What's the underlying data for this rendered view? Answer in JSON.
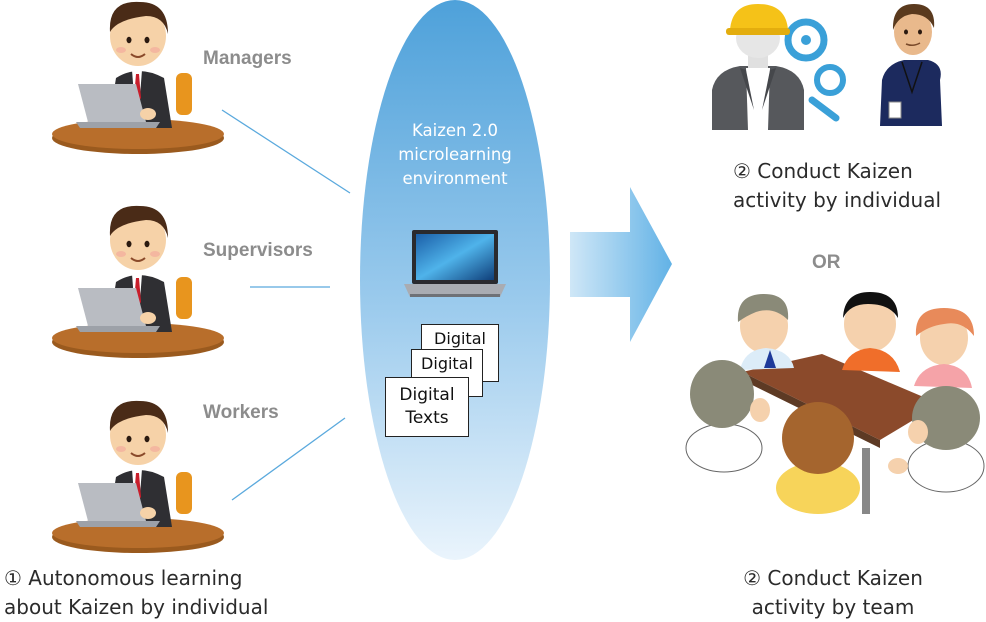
{
  "roles": {
    "managers": "Managers",
    "supervisors": "Supervisors",
    "workers": "Workers"
  },
  "environment": {
    "line1": "Kaizen 2.0",
    "line2": "microlearning",
    "line3": "environment"
  },
  "documents": {
    "back": "Digital",
    "middle": "Digital",
    "front_line1": "Digital",
    "front_line2": "Texts"
  },
  "captions": {
    "left_line1": "① Autonomous learning",
    "left_line2": "about Kaizen by individual",
    "right_top_line1": "② Conduct Kaizen",
    "right_top_line2": "activity by individual",
    "or": "OR",
    "right_bottom_line1": "② Conduct Kaizen",
    "right_bottom_line2": "activity by team"
  },
  "colors": {
    "ellipse_top": "#5aa9dd",
    "ellipse_bottom": "#e6f2fb",
    "arrow": "#7cc0ea",
    "role_label": "#8c8c8c",
    "connector": "#5aa9dd"
  }
}
